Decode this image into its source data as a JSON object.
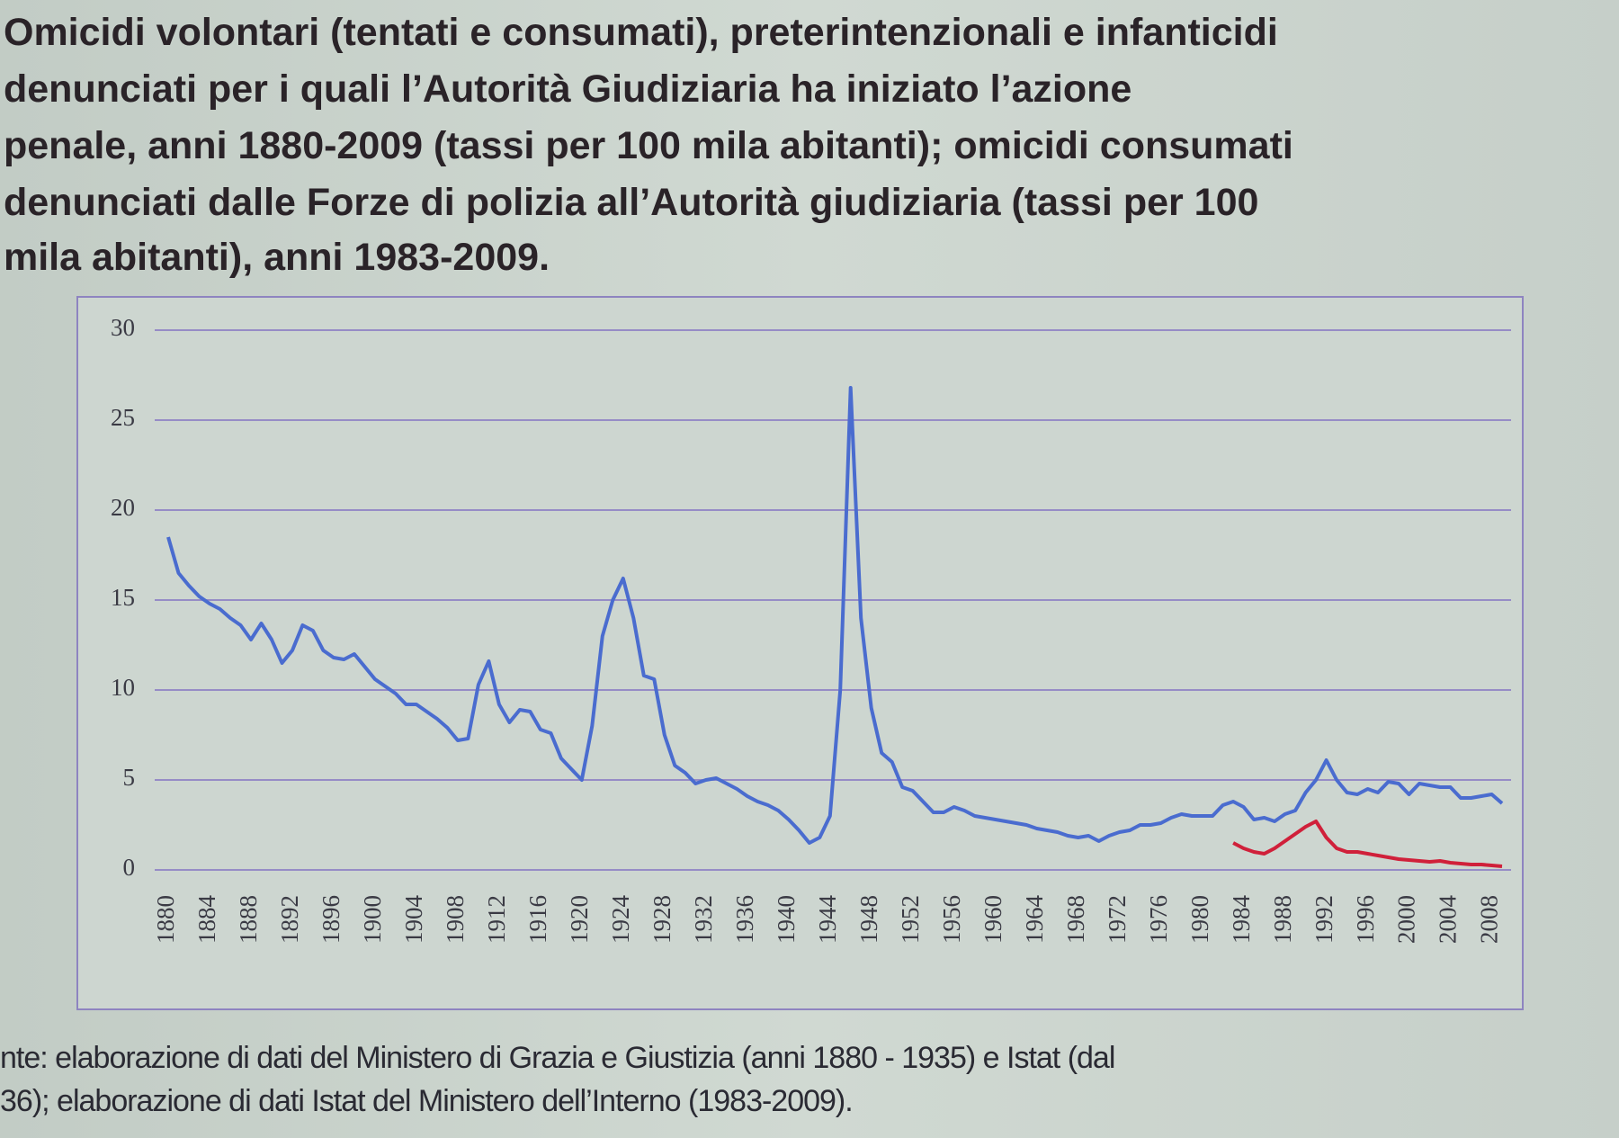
{
  "chart_data": {
    "type": "line",
    "title": [
      "Omicidi volontari (tentati e consumati), preterintenzionali e infanticidi",
      "denunciati per i quali l’Autorità Giudiziaria ha iniziato l’azione",
      "penale, anni 1880-2009 (tassi per 100 mila abitanti); omicidi consumati",
      "denunciati dalle Forze di polizia all’Autorità giudiziaria (tassi per 100",
      "mila abitanti), anni 1983-2009."
    ],
    "source": [
      "nte: elaborazione di dati del Ministero di Grazia e Giustizia (anni 1880 - 1935) e Istat (dal",
      "36); elaborazione di dati Istat del Ministero dell’Interno (1983-2009)."
    ],
    "x": [
      1880,
      1881,
      1882,
      1883,
      1884,
      1885,
      1886,
      1887,
      1888,
      1889,
      1890,
      1891,
      1892,
      1893,
      1894,
      1895,
      1896,
      1897,
      1898,
      1899,
      1900,
      1901,
      1902,
      1903,
      1904,
      1905,
      1906,
      1907,
      1908,
      1909,
      1910,
      1911,
      1912,
      1913,
      1914,
      1915,
      1916,
      1917,
      1918,
      1919,
      1920,
      1921,
      1922,
      1923,
      1924,
      1925,
      1926,
      1927,
      1928,
      1929,
      1930,
      1931,
      1932,
      1933,
      1934,
      1935,
      1936,
      1937,
      1938,
      1939,
      1940,
      1941,
      1942,
      1943,
      1944,
      1945,
      1946,
      1947,
      1948,
      1949,
      1950,
      1951,
      1952,
      1953,
      1954,
      1955,
      1956,
      1957,
      1958,
      1959,
      1960,
      1961,
      1962,
      1963,
      1964,
      1965,
      1966,
      1967,
      1968,
      1969,
      1970,
      1971,
      1972,
      1973,
      1974,
      1975,
      1976,
      1977,
      1978,
      1979,
      1980,
      1981,
      1982,
      1983,
      1984,
      1985,
      1986,
      1987,
      1988,
      1989,
      1990,
      1991,
      1992,
      1993,
      1994,
      1995,
      1996,
      1997,
      1998,
      1999,
      2000,
      2001,
      2002,
      2003,
      2004,
      2005,
      2006,
      2007,
      2008,
      2009
    ],
    "series": [
      {
        "color": "#4a6ccf",
        "values": [
          18.5,
          16.5,
          15.8,
          15.2,
          14.8,
          14.5,
          14.0,
          13.6,
          12.8,
          13.7,
          12.8,
          11.5,
          12.2,
          13.6,
          13.3,
          12.2,
          11.8,
          11.7,
          12.0,
          11.3,
          10.6,
          10.2,
          9.8,
          9.2,
          9.2,
          8.8,
          8.4,
          7.9,
          7.2,
          7.3,
          10.3,
          11.6,
          9.2,
          8.2,
          8.9,
          8.8,
          7.8,
          7.6,
          6.2,
          5.6,
          5.0,
          8.0,
          13.0,
          15.0,
          16.2,
          14.0,
          10.8,
          10.6,
          7.5,
          5.8,
          5.4,
          4.8,
          5.0,
          5.1,
          4.8,
          4.5,
          4.1,
          3.8,
          3.6,
          3.3,
          2.8,
          2.2,
          1.5,
          1.8,
          3.0,
          10.0,
          26.8,
          14.0,
          9.0,
          6.5,
          6.0,
          4.6,
          4.4,
          3.8,
          3.2,
          3.2,
          3.5,
          3.3,
          3.0,
          2.9,
          2.8,
          2.7,
          2.6,
          2.5,
          2.3,
          2.2,
          2.1,
          1.9,
          1.8,
          1.9,
          1.6,
          1.9,
          2.1,
          2.2,
          2.5,
          2.5,
          2.6,
          2.9,
          3.1,
          3.0,
          3.0,
          3.0,
          3.6,
          3.8,
          3.5,
          2.8,
          2.9,
          2.7,
          3.1,
          3.3,
          4.3,
          5.0,
          6.1,
          5.0,
          4.3,
          4.2,
          4.5,
          4.3,
          4.9,
          4.8,
          4.2,
          4.8,
          4.7,
          4.6,
          4.6,
          4.0,
          4.0,
          4.1,
          4.2,
          3.7
        ]
      },
      {
        "color": "#d0203a",
        "values": [
          null,
          null,
          null,
          null,
          null,
          null,
          null,
          null,
          null,
          null,
          null,
          null,
          null,
          null,
          null,
          null,
          null,
          null,
          null,
          null,
          null,
          null,
          null,
          null,
          null,
          null,
          null,
          null,
          null,
          null,
          null,
          null,
          null,
          null,
          null,
          null,
          null,
          null,
          null,
          null,
          null,
          null,
          null,
          null,
          null,
          null,
          null,
          null,
          null,
          null,
          null,
          null,
          null,
          null,
          null,
          null,
          null,
          null,
          null,
          null,
          null,
          null,
          null,
          null,
          null,
          null,
          null,
          null,
          null,
          null,
          null,
          null,
          null,
          null,
          null,
          null,
          null,
          null,
          null,
          null,
          null,
          null,
          null,
          null,
          null,
          null,
          null,
          null,
          null,
          null,
          null,
          null,
          null,
          null,
          null,
          null,
          null,
          null,
          null,
          null,
          null,
          null,
          null,
          1.5,
          1.2,
          1.0,
          0.9,
          1.2,
          1.6,
          2.0,
          2.4,
          2.7,
          1.8,
          1.2,
          1.0,
          1.0,
          0.9,
          0.8,
          0.7,
          0.6,
          0.55,
          0.5,
          0.45,
          0.5,
          0.4,
          0.35,
          0.3,
          0.3,
          0.25,
          0.2
        ]
      }
    ],
    "xlim": [
      1880,
      2009
    ],
    "ylim": [
      0,
      30
    ],
    "yticks": [
      0,
      5,
      10,
      15,
      20,
      25,
      30
    ],
    "xticks": [
      1880,
      1884,
      1888,
      1892,
      1896,
      1900,
      1904,
      1908,
      1912,
      1916,
      1920,
      1924,
      1928,
      1932,
      1936,
      1940,
      1944,
      1948,
      1952,
      1956,
      1960,
      1964,
      1968,
      1972,
      1976,
      1980,
      1984,
      1988,
      1992,
      1996,
      2000,
      2004,
      2008
    ],
    "grid": true
  }
}
